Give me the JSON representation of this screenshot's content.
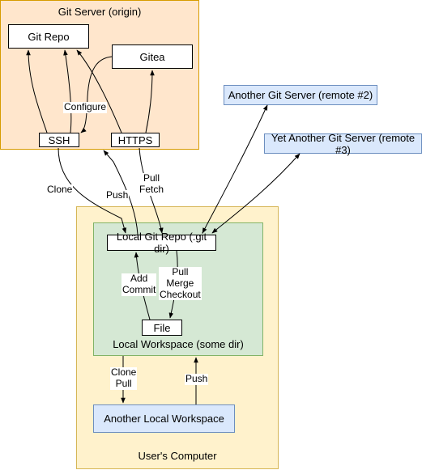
{
  "type": "flowchart",
  "colors": {
    "server_bg": "#ffe6cc",
    "server_border": "#d79b00",
    "remote_bg": "#dae8fc",
    "remote_border": "#6c8ebf",
    "computer_bg": "#fff2cc",
    "computer_border": "#d6b656",
    "workspace_bg": "#d5e8d4",
    "workspace_border": "#82b366",
    "box_bg": "#ffffff",
    "box_border": "#000000",
    "line": "#000000"
  },
  "regions": {
    "server": {
      "label": "Git Server (origin)"
    },
    "computer": {
      "label": "User's Computer"
    },
    "workspace": {
      "label": "Local Workspace (some dir)"
    }
  },
  "nodes": {
    "git_repo": {
      "label": "Git Repo"
    },
    "gitea": {
      "label": "Gitea"
    },
    "ssh": {
      "label": "SSH"
    },
    "https": {
      "label": "HTTPS"
    },
    "remote2": {
      "label": "Another Git Server (remote #2)"
    },
    "remote3": {
      "label": "Yet Another Git Server (remote #3)"
    },
    "local_repo": {
      "label": "Local Git Repo (.git dir)"
    },
    "file": {
      "label": "File"
    },
    "another_ws": {
      "label": "Another Local Workspace"
    }
  },
  "edge_labels": {
    "configure": "Configure",
    "clone": "Clone",
    "push": "Push",
    "pull_fetch": "Pull\nFetch",
    "add_commit": "Add\nCommit",
    "pull_merge": "Pull\nMerge\nCheckout",
    "clone_pull": "Clone\nPull",
    "push2": "Push"
  }
}
